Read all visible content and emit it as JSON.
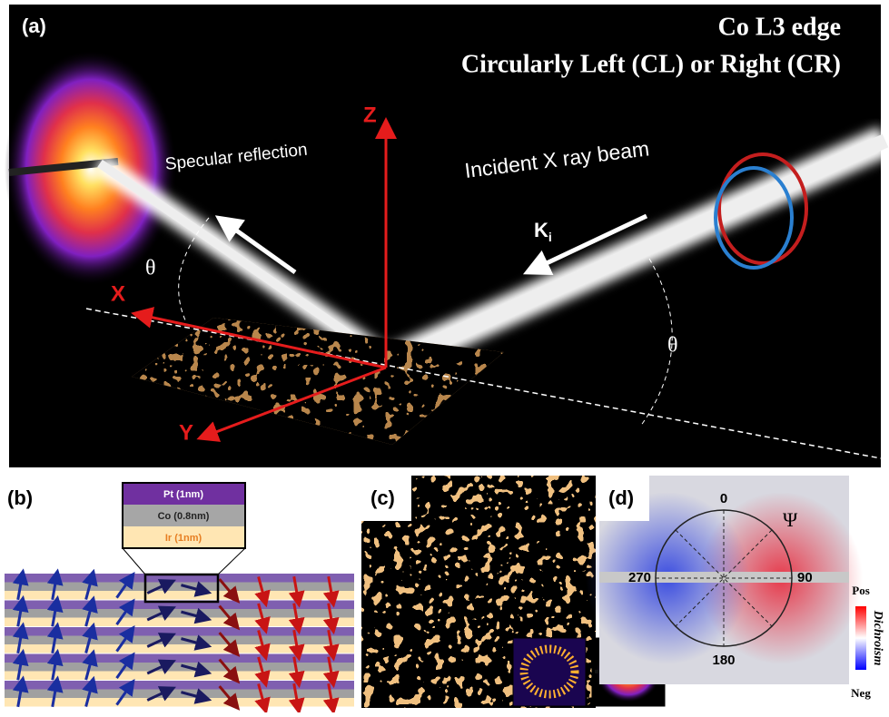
{
  "panel_a": {
    "label": "(a)",
    "title_line1": "Co L3 edge",
    "title_line2": "Circularly Left (CL) or Right (CR)",
    "specular": "Specular reflection",
    "incident": "Incident X ray beam",
    "k_main": "K",
    "k_sub": "i",
    "axis_z": "Z",
    "axis_x": "X",
    "axis_y": "Y",
    "theta_left": "θ",
    "theta_right": "θ"
  },
  "panel_b": {
    "label": "(b)",
    "layers": [
      "Pt (1nm)",
      "Co (0.8nm)",
      "Ir (1nm)"
    ]
  },
  "panel_c": {
    "label": "(c)"
  },
  "panel_d": {
    "label": "(d)",
    "angle_top": "0",
    "angle_right": "90",
    "angle_bottom": "180",
    "angle_left": "270",
    "psi": "Ψ",
    "scale_pos": "Pos",
    "scale_neg": "Neg",
    "scale_title": "Dichroism"
  }
}
